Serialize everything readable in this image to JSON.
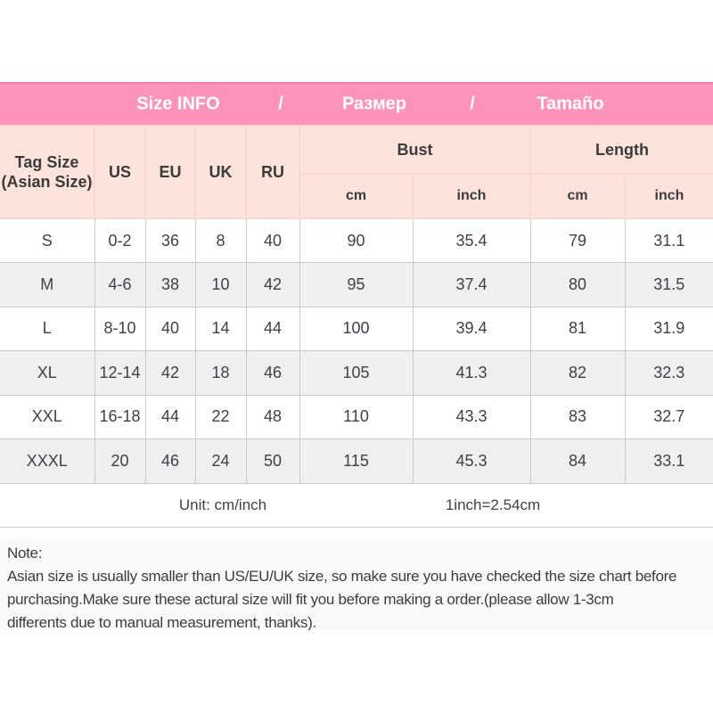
{
  "banner": {
    "title_en": "Size INFO",
    "separator1": "/",
    "title_ru": "Размер",
    "separator2": "/",
    "title_es": "Tamaño"
  },
  "table": {
    "headers": {
      "tag_size_line1": "Tag Size",
      "tag_size_line2": "(Asian Size)",
      "us": "US",
      "eu": "EU",
      "uk": "UK",
      "ru": "RU",
      "bust": "Bust",
      "length": "Length",
      "bust_cm": "cm",
      "bust_inch": "inch",
      "length_cm": "cm",
      "length_inch": "inch"
    },
    "rows": [
      {
        "tag": "S",
        "us": "0-2",
        "eu": "36",
        "uk": "8",
        "ru": "40",
        "bust_cm": "90",
        "bust_inch": "35.4",
        "length_cm": "79",
        "length_inch": "31.1"
      },
      {
        "tag": "M",
        "us": "4-6",
        "eu": "38",
        "uk": "10",
        "ru": "42",
        "bust_cm": "95",
        "bust_inch": "37.4",
        "length_cm": "80",
        "length_inch": "31.5"
      },
      {
        "tag": "L",
        "us": "8-10",
        "eu": "40",
        "uk": "14",
        "ru": "44",
        "bust_cm": "100",
        "bust_inch": "39.4",
        "length_cm": "81",
        "length_inch": "31.9"
      },
      {
        "tag": "XL",
        "us": "12-14",
        "eu": "42",
        "uk": "18",
        "ru": "46",
        "bust_cm": "105",
        "bust_inch": "41.3",
        "length_cm": "82",
        "length_inch": "32.3"
      },
      {
        "tag": "XXL",
        "us": "16-18",
        "eu": "44",
        "uk": "22",
        "ru": "48",
        "bust_cm": "110",
        "bust_inch": "43.3",
        "length_cm": "83",
        "length_inch": "32.7"
      },
      {
        "tag": "XXXL",
        "us": "20",
        "eu": "46",
        "uk": "24",
        "ru": "50",
        "bust_cm": "115",
        "bust_inch": "45.3",
        "length_cm": "84",
        "length_inch": "33.1"
      }
    ],
    "footer": {
      "unit_label": "Unit: cm/inch",
      "conversion": "1inch=2.54cm"
    }
  },
  "note": {
    "title": "Note:",
    "lines": [
      "Asian size is usually smaller than US/EU/UK size, so make sure you have checked the size chart before",
      "purchasing.Make sure these actural size will fit you before making a order.(please allow 1-3cm",
      "differents due to manual measurement, thanks)."
    ]
  },
  "colors": {
    "banner_pink": "#fc93bb",
    "banner_top_line": "#f77fa9",
    "header_pink": "#fce4dc",
    "header_border": "#f8d8d0",
    "row_alt_gray": "#efefef",
    "cell_border": "#cbcbcb",
    "text_dark": "#3e4149",
    "note_bg": "#fafafa"
  }
}
